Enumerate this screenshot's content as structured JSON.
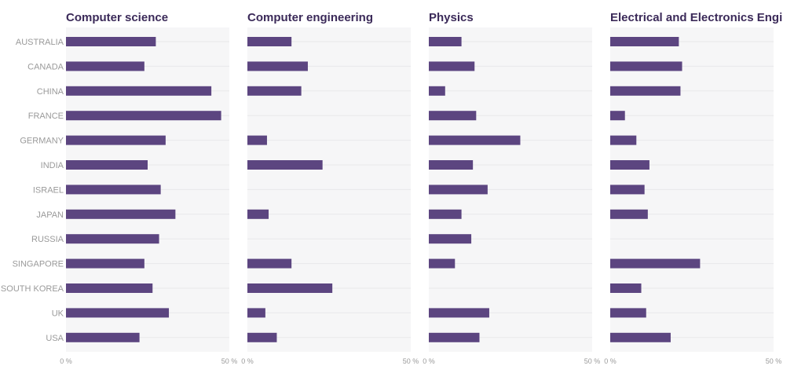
{
  "colors": {
    "bar": "#5c4580",
    "title": "#3b2a59",
    "panel_bg": "#f6f6f7",
    "grid": "#e8e8ea",
    "label": "#9a9a9a"
  },
  "chart_data": {
    "type": "bar",
    "orientation": "horizontal",
    "categories": [
      "AUSTRALIA",
      "CANADA",
      "CHINA",
      "FRANCE",
      "GERMANY",
      "INDIA",
      "ISRAEL",
      "JAPAN",
      "RUSSIA",
      "SINGAPORE",
      "SOUTH KOREA",
      "UK",
      "USA"
    ],
    "xlim": [
      0,
      50
    ],
    "x_ticks": [
      {
        "value": 0,
        "label": "0 %"
      },
      {
        "value": 50,
        "label": "50 %"
      }
    ],
    "series": [
      {
        "name": "Computer science",
        "values": [
          27.5,
          24,
          44.5,
          47.5,
          30.5,
          25,
          29,
          33.5,
          28.5,
          24,
          26.5,
          31.5,
          22.5
        ]
      },
      {
        "name": "Computer engineering",
        "values": [
          13.5,
          18.5,
          16.5,
          null,
          6,
          23,
          null,
          6.5,
          null,
          13.5,
          26,
          5.5,
          9
        ]
      },
      {
        "name": "Physics",
        "values": [
          10,
          14,
          5,
          14.5,
          28,
          13.5,
          18,
          10,
          13,
          8,
          null,
          18.5,
          15.5
        ]
      },
      {
        "name": "Electrical and Electronics Engineering",
        "values": [
          21,
          22,
          21.5,
          4.5,
          8,
          12,
          10.5,
          11.5,
          null,
          27.5,
          9.5,
          11,
          18.5
        ]
      }
    ]
  }
}
